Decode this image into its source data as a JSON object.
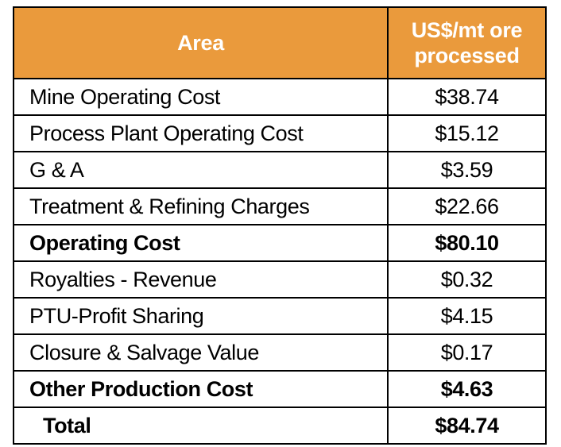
{
  "table": {
    "headers": {
      "area": "Area",
      "value_line1": "US$/mt ore",
      "value_line2": "processed"
    },
    "colors": {
      "header_bg": "#ea9a3c",
      "header_text": "#ffffff",
      "border": "#000000"
    },
    "rows": [
      {
        "area": "Mine Operating Cost",
        "value": "$38.74",
        "bold": false
      },
      {
        "area": "Process Plant Operating Cost",
        "value": "$15.12",
        "bold": false
      },
      {
        "area": "G & A",
        "value": "$3.59",
        "bold": false
      },
      {
        "area": "Treatment & Refining Charges",
        "value": "$22.66",
        "bold": false
      },
      {
        "area": "Operating Cost",
        "value": "$80.10",
        "bold": true
      },
      {
        "area": "Royalties - Revenue",
        "value": "$0.32",
        "bold": false
      },
      {
        "area": "PTU-Profit Sharing",
        "value": "$4.15",
        "bold": false
      },
      {
        "area": "Closure & Salvage Value",
        "value": "$0.17",
        "bold": false
      },
      {
        "area": "Other Production Cost",
        "value": "$4.63",
        "bold": true
      },
      {
        "area": "Total",
        "value": "$84.74",
        "bold": true
      }
    ]
  }
}
